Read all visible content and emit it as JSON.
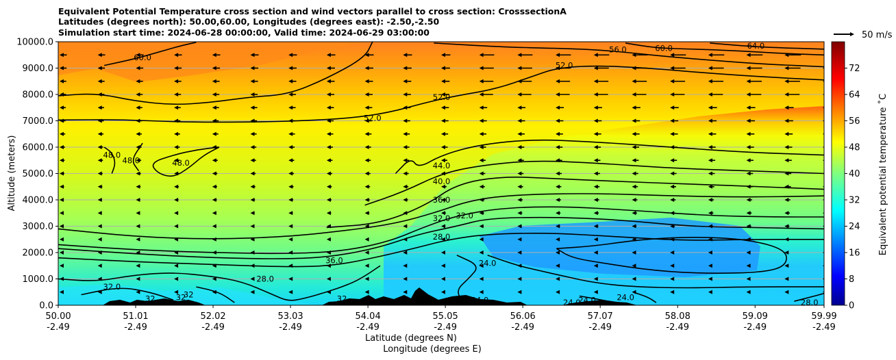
{
  "chart_data": {
    "type": "heatmap",
    "title_lines": [
      "Equivalent Potential Temperature cross section and wind vectors parallel to cross section: CrosssectionA",
      "Latitudes (degrees north): 50.00,60.00, Longitudes (degrees east): -2.50,-2.50",
      "Simulation start time: 2024-06-28 00:00:00, Valid time: 2024-06-29 03:00:00"
    ],
    "ylabel": "Altitude (meters)",
    "xlabel_lat": "Latitude (degrees N)",
    "xlabel_lon": "Longitude (degrees E)",
    "ylim": [
      0,
      10000
    ],
    "yticks": [
      "0.0",
      "1000.0",
      "2000.0",
      "3000.0",
      "4000.0",
      "5000.0",
      "6000.0",
      "7000.0",
      "8000.0",
      "9000.0",
      "10000.0"
    ],
    "ytick_values": [
      0,
      1000,
      2000,
      3000,
      4000,
      5000,
      6000,
      7000,
      8000,
      9000,
      10000
    ],
    "xlim": [
      50.0,
      59.99
    ],
    "xticks": [
      {
        "lat": "50.00",
        "lon": "-2.49",
        "value": 50.0
      },
      {
        "lat": "51.01",
        "lon": "-2.49",
        "value": 51.01
      },
      {
        "lat": "52.02",
        "lon": "-2.49",
        "value": 52.02
      },
      {
        "lat": "53.03",
        "lon": "-2.49",
        "value": 53.03
      },
      {
        "lat": "54.04",
        "lon": "-2.49",
        "value": 54.04
      },
      {
        "lat": "55.05",
        "lon": "-2.49",
        "value": 55.05
      },
      {
        "lat": "56.06",
        "lon": "-2.49",
        "value": 56.06
      },
      {
        "lat": "57.07",
        "lon": "-2.49",
        "value": 57.07
      },
      {
        "lat": "58.08",
        "lon": "-2.49",
        "value": 58.08
      },
      {
        "lat": "59.09",
        "lon": "-2.49",
        "value": 59.09
      },
      {
        "lat": "59.99",
        "lon": "-2.49",
        "value": 59.99
      }
    ],
    "grid": "horizontal",
    "colorbar": {
      "label": "Equivalent potential temperature ˚C",
      "ticks": [
        "0",
        "8",
        "16",
        "24",
        "32",
        "40",
        "48",
        "56",
        "64",
        "72"
      ],
      "tick_values": [
        0,
        8,
        16,
        24,
        32,
        40,
        48,
        56,
        64,
        72
      ],
      "range": [
        0,
        80
      ],
      "colormap": "jet"
    },
    "quiver_key": "50 m/s",
    "contour_labels": [
      {
        "text": "60.0",
        "lat": 51.1,
        "alt": 9400
      },
      {
        "text": "56.0",
        "lat": 57.3,
        "alt": 9700
      },
      {
        "text": "60.0",
        "lat": 57.9,
        "alt": 9750
      },
      {
        "text": "64.0",
        "lat": 59.1,
        "alt": 9850
      },
      {
        "text": "52.0",
        "lat": 56.6,
        "alt": 9100
      },
      {
        "text": "52.0",
        "lat": 55.0,
        "alt": 7900
      },
      {
        "text": "52.0",
        "lat": 54.1,
        "alt": 7100
      },
      {
        "text": "48.0",
        "lat": 50.7,
        "alt": 5700
      },
      {
        "text": "48.0",
        "lat": 50.95,
        "alt": 5500
      },
      {
        "text": "48.0",
        "lat": 51.6,
        "alt": 5400
      },
      {
        "text": "44.0",
        "lat": 55.0,
        "alt": 5300
      },
      {
        "text": "40.0",
        "lat": 55.0,
        "alt": 4700
      },
      {
        "text": "36.0",
        "lat": 55.0,
        "alt": 4000
      },
      {
        "text": "32.0",
        "lat": 55.0,
        "alt": 3300
      },
      {
        "text": "32.0",
        "lat": 55.3,
        "alt": 3400
      },
      {
        "text": "28.0",
        "lat": 55.0,
        "alt": 2600
      },
      {
        "text": "36.0",
        "lat": 53.6,
        "alt": 1700
      },
      {
        "text": "28.0",
        "lat": 52.7,
        "alt": 1000
      },
      {
        "text": "24.0",
        "lat": 55.6,
        "alt": 1600
      },
      {
        "text": "32.0",
        "lat": 50.7,
        "alt": 700
      },
      {
        "text": "32",
        "lat": 51.6,
        "alt": 300
      },
      {
        "text": "32",
        "lat": 51.7,
        "alt": 400
      },
      {
        "text": "32",
        "lat": 51.2,
        "alt": 250
      },
      {
        "text": "32",
        "lat": 53.7,
        "alt": 250
      },
      {
        "text": "32",
        "lat": 54.2,
        "alt": 100
      },
      {
        "text": "24.0",
        "lat": 55.5,
        "alt": 200
      },
      {
        "text": "24.0",
        "lat": 56.7,
        "alt": 100
      },
      {
        "text": "24.0",
        "lat": 56.9,
        "alt": 200
      },
      {
        "text": "24.0",
        "lat": 57.4,
        "alt": 300
      },
      {
        "text": "28.0",
        "lat": 59.8,
        "alt": 100
      }
    ],
    "contours": [
      {
        "level": 64,
        "points": [
          [
            58.5,
            9950
          ],
          [
            58.9,
            9850
          ],
          [
            59.3,
            9780
          ],
          [
            59.99,
            9720
          ]
        ]
      },
      {
        "level": 60,
        "points": [
          [
            50.6,
            9100
          ],
          [
            51.0,
            9350
          ],
          [
            51.3,
            9600
          ],
          [
            51.6,
            9850
          ],
          [
            51.8,
            9980
          ]
        ]
      },
      {
        "level": 60,
        "points": [
          [
            57.4,
            9950
          ],
          [
            57.8,
            9760
          ],
          [
            58.3,
            9720
          ],
          [
            58.9,
            9650
          ],
          [
            59.5,
            9550
          ],
          [
            59.99,
            9500
          ]
        ]
      },
      {
        "level": 56,
        "points": [
          [
            50.0,
            7950
          ],
          [
            50.5,
            8050
          ],
          [
            51.0,
            7750
          ],
          [
            51.5,
            7600
          ],
          [
            52.0,
            7700
          ],
          [
            52.5,
            7900
          ],
          [
            53.0,
            8000
          ],
          [
            53.5,
            8600
          ],
          [
            54.0,
            9400
          ],
          [
            54.1,
            10000
          ]
        ]
      },
      {
        "level": 56,
        "points": [
          [
            54.9,
            9950
          ],
          [
            55.8,
            9800
          ],
          [
            56.5,
            9750
          ],
          [
            57.0,
            9700
          ],
          [
            57.4,
            9600
          ],
          [
            57.9,
            9450
          ],
          [
            58.5,
            9300
          ],
          [
            59.2,
            9150
          ],
          [
            59.99,
            9050
          ]
        ]
      },
      {
        "level": 52,
        "points": [
          [
            50.0,
            7030
          ],
          [
            50.8,
            7050
          ],
          [
            51.6,
            6950
          ],
          [
            52.5,
            6950
          ],
          [
            53.2,
            7000
          ],
          [
            53.8,
            7100
          ],
          [
            54.3,
            7300
          ],
          [
            54.8,
            7700
          ],
          [
            55.2,
            7950
          ],
          [
            55.7,
            8200
          ],
          [
            56.2,
            8700
          ],
          [
            56.5,
            9000
          ],
          [
            57.0,
            9100
          ],
          [
            57.7,
            9000
          ],
          [
            58.5,
            8800
          ],
          [
            59.3,
            8650
          ],
          [
            59.99,
            8550
          ]
        ]
      },
      {
        "level": 48,
        "points": [
          [
            50.6,
            6000
          ],
          [
            50.7,
            5800
          ],
          [
            50.75,
            5400
          ],
          [
            50.7,
            5000
          ]
        ]
      },
      {
        "level": 48,
        "points": [
          [
            51.1,
            6150
          ],
          [
            50.95,
            5500
          ],
          [
            51.05,
            5100
          ]
        ]
      },
      {
        "level": 48,
        "points": [
          [
            52.1,
            6000
          ],
          [
            51.8,
            5900
          ],
          [
            51.5,
            5700
          ],
          [
            51.2,
            5400
          ],
          [
            51.3,
            5000
          ],
          [
            51.5,
            4850
          ],
          [
            51.7,
            5200
          ],
          [
            51.9,
            5700
          ],
          [
            52.1,
            6000
          ]
        ]
      },
      {
        "level": 48,
        "points": [
          [
            54.4,
            5000
          ],
          [
            54.6,
            5600
          ],
          [
            54.7,
            5200
          ],
          [
            55.0,
            5700
          ],
          [
            55.5,
            6100
          ],
          [
            56.2,
            6300
          ],
          [
            57.0,
            6200
          ],
          [
            58.0,
            6000
          ],
          [
            59.0,
            5800
          ],
          [
            59.99,
            5700
          ]
        ]
      },
      {
        "level": 44,
        "points": [
          [
            54.0,
            3800
          ],
          [
            54.5,
            4300
          ],
          [
            55.0,
            5000
          ],
          [
            55.5,
            5300
          ],
          [
            56.2,
            5500
          ],
          [
            57.0,
            5400
          ],
          [
            58.0,
            5200
          ],
          [
            59.0,
            5100
          ],
          [
            59.99,
            5000
          ]
        ]
      },
      {
        "level": 40,
        "points": [
          [
            53.5,
            2950
          ],
          [
            54.2,
            3100
          ],
          [
            54.8,
            3800
          ],
          [
            55.2,
            4600
          ],
          [
            55.8,
            4900
          ],
          [
            56.5,
            4800
          ],
          [
            57.3,
            4700
          ],
          [
            58.2,
            4600
          ],
          [
            59.2,
            4500
          ],
          [
            59.99,
            4400
          ]
        ]
      },
      {
        "level": 36,
        "points": [
          [
            50.0,
            2900
          ],
          [
            51.0,
            2600
          ],
          [
            52.0,
            2500
          ],
          [
            53.0,
            2600
          ],
          [
            53.8,
            2850
          ],
          [
            54.4,
            3100
          ],
          [
            54.9,
            3500
          ],
          [
            55.4,
            4000
          ],
          [
            56.0,
            4200
          ],
          [
            57.0,
            4250
          ],
          [
            58.0,
            4150
          ],
          [
            59.0,
            4100
          ],
          [
            59.99,
            4150
          ]
        ]
      },
      {
        "level": 32,
        "points": [
          [
            50.0,
            2300
          ],
          [
            51.0,
            2100
          ],
          [
            52.0,
            2000
          ],
          [
            53.0,
            1950
          ],
          [
            53.7,
            2050
          ],
          [
            54.3,
            2400
          ],
          [
            54.8,
            3000
          ],
          [
            55.2,
            3400
          ],
          [
            55.8,
            3700
          ],
          [
            56.6,
            3750
          ],
          [
            57.5,
            3600
          ],
          [
            58.5,
            3400
          ],
          [
            59.3,
            3350
          ],
          [
            59.99,
            3350
          ]
        ]
      },
      {
        "level": 32,
        "points": [
          [
            50.0,
            2150
          ],
          [
            51.0,
            1950
          ],
          [
            52.0,
            1800
          ],
          [
            53.0,
            1750
          ],
          [
            53.6,
            1850
          ],
          [
            54.2,
            2200
          ],
          [
            54.7,
            2700
          ],
          [
            55.2,
            3000
          ],
          [
            55.6,
            3300
          ],
          [
            56.4,
            3350
          ],
          [
            57.3,
            3250
          ],
          [
            58.2,
            3000
          ],
          [
            59.0,
            2950
          ],
          [
            59.99,
            2900
          ]
        ]
      },
      {
        "level": 28,
        "points": [
          [
            50.0,
            1800
          ],
          [
            51.0,
            1650
          ],
          [
            52.0,
            1550
          ],
          [
            53.0,
            1450
          ],
          [
            53.6,
            1500
          ],
          [
            54.2,
            1850
          ],
          [
            54.7,
            2200
          ],
          [
            55.1,
            2500
          ],
          [
            55.6,
            2700
          ],
          [
            56.4,
            2750
          ],
          [
            57.3,
            2600
          ],
          [
            58.2,
            2450
          ],
          [
            59.0,
            2500
          ],
          [
            59.99,
            2500
          ]
        ]
      },
      {
        "level": 28,
        "points": [
          [
            50.0,
            1000
          ],
          [
            50.5,
            900
          ],
          [
            51.0,
            1150
          ],
          [
            51.5,
            1250
          ],
          [
            52.0,
            1100
          ],
          [
            52.4,
            900
          ],
          [
            52.8,
            400
          ],
          [
            53.0,
            150
          ],
          [
            53.2,
            250
          ],
          [
            53.5,
            500
          ],
          [
            53.8,
            800
          ],
          [
            54.0,
            1100
          ],
          [
            54.2,
            1500
          ]
        ]
      },
      {
        "level": 24,
        "points": [
          [
            55.6,
            1900
          ],
          [
            56.0,
            1500
          ],
          [
            56.3,
            1300
          ],
          [
            56.6,
            1100
          ],
          [
            57.0,
            850
          ],
          [
            57.5,
            700
          ],
          [
            58.2,
            650
          ],
          [
            59.0,
            700
          ],
          [
            59.99,
            700
          ]
        ]
      },
      {
        "level": 24,
        "points": [
          [
            56.5,
            2150
          ],
          [
            57.0,
            2250
          ],
          [
            57.6,
            2500
          ],
          [
            58.3,
            2600
          ],
          [
            59.0,
            2500
          ],
          [
            59.5,
            2100
          ],
          [
            59.5,
            1500
          ],
          [
            59.2,
            1250
          ],
          [
            58.5,
            1200
          ],
          [
            57.8,
            1300
          ],
          [
            57.1,
            1600
          ],
          [
            56.7,
            1800
          ],
          [
            56.5,
            2150
          ]
        ]
      },
      {
        "level": 24,
        "points": [
          [
            55.2,
            1900
          ],
          [
            55.5,
            1500
          ],
          [
            55.35,
            1000
          ],
          [
            55.2,
            600
          ],
          [
            55.25,
            200
          ]
        ]
      },
      {
        "level": 32,
        "points": [
          [
            50.3,
            400
          ],
          [
            50.8,
            700
          ],
          [
            51.2,
            500
          ],
          [
            51.5,
            200
          ]
        ]
      },
      {
        "level": 32,
        "points": [
          [
            51.8,
            700
          ],
          [
            52.1,
            500
          ],
          [
            52.3,
            100
          ]
        ]
      },
      {
        "level": 24,
        "points": [
          [
            56.8,
            350
          ],
          [
            57.1,
            200
          ],
          [
            57.3,
            50
          ]
        ]
      },
      {
        "level": 24,
        "points": [
          [
            57.5,
            500
          ],
          [
            57.7,
            300
          ],
          [
            57.8,
            100
          ]
        ]
      },
      {
        "level": 28,
        "points": [
          [
            59.6,
            150
          ],
          [
            59.8,
            300
          ],
          [
            59.99,
            450
          ]
        ]
      }
    ]
  }
}
